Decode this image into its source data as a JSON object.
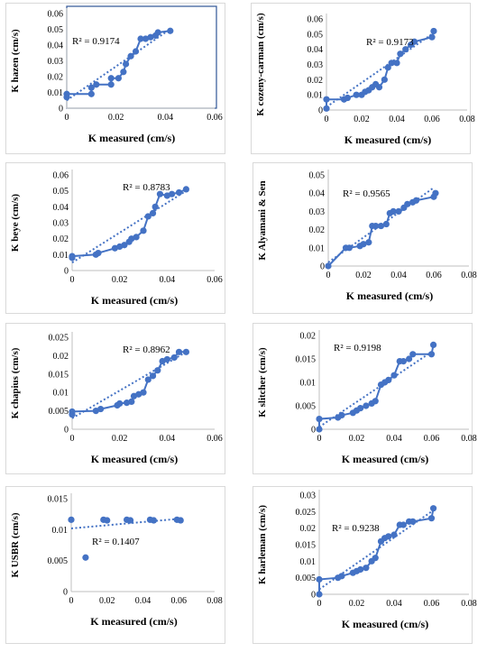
{
  "chart_data": [
    {
      "type": "scatter",
      "ylabel": "K hazen (cm/s)",
      "xlabel": "K measured (cm/s)",
      "annotation": "R² = 0.9174",
      "xlim": [
        0,
        0.06
      ],
      "xticks": [
        0,
        0.02,
        0.04,
        0.06
      ],
      "xtick_labels": [
        "0",
        "0.02",
        "0.04",
        "0.06"
      ],
      "ylim": [
        0,
        0.06
      ],
      "yticks": [
        0,
        0.01,
        0.02,
        0.03,
        0.04,
        0.05,
        0.06
      ],
      "ytick_labels": [
        "0",
        "0.01",
        "0.02",
        "0.03",
        "0.04",
        "0.05",
        "0.06"
      ],
      "grid": false,
      "points": [
        [
          0,
          0.007
        ],
        [
          0,
          0.009
        ],
        [
          0.01,
          0.009
        ],
        [
          0.01,
          0.013
        ],
        [
          0.012,
          0.015
        ],
        [
          0.018,
          0.015
        ],
        [
          0.018,
          0.019
        ],
        [
          0.021,
          0.019
        ],
        [
          0.023,
          0.023
        ],
        [
          0.024,
          0.028
        ],
        [
          0.026,
          0.033
        ],
        [
          0.028,
          0.036
        ],
        [
          0.03,
          0.044
        ],
        [
          0.032,
          0.044
        ],
        [
          0.034,
          0.045
        ],
        [
          0.036,
          0.046
        ],
        [
          0.037,
          0.048
        ],
        [
          0.042,
          0.049
        ]
      ],
      "trendline": [
        [
          0,
          0.005
        ],
        [
          0.04,
          0.048
        ]
      ]
    },
    {
      "type": "scatter",
      "ylabel": "K cozeny-carman (cm/s)",
      "xlabel": "K measured (cm/s)",
      "annotation": "R² = 0.9173",
      "xlim": [
        0,
        0.08
      ],
      "xticks": [
        0,
        0.02,
        0.04,
        0.06,
        0.08
      ],
      "xtick_labels": [
        "0",
        "0.02",
        "0.04",
        "0.06",
        "0.08"
      ],
      "ylim": [
        0,
        0.06
      ],
      "yticks": [
        0,
        0.01,
        0.02,
        0.03,
        0.04,
        0.05,
        0.06
      ],
      "ytick_labels": [
        "0",
        "0.01",
        "0.02",
        "0.03",
        "0.04",
        "0.05",
        "0.06"
      ],
      "grid": false,
      "points": [
        [
          0,
          0.001
        ],
        [
          0,
          0.007
        ],
        [
          0.01,
          0.007
        ],
        [
          0.012,
          0.008
        ],
        [
          0.017,
          0.01
        ],
        [
          0.02,
          0.01
        ],
        [
          0.022,
          0.012
        ],
        [
          0.024,
          0.013
        ],
        [
          0.026,
          0.015
        ],
        [
          0.028,
          0.017
        ],
        [
          0.03,
          0.015
        ],
        [
          0.033,
          0.02
        ],
        [
          0.035,
          0.028
        ],
        [
          0.037,
          0.031
        ],
        [
          0.04,
          0.031
        ],
        [
          0.042,
          0.037
        ],
        [
          0.045,
          0.04
        ],
        [
          0.048,
          0.043
        ],
        [
          0.05,
          0.045
        ],
        [
          0.06,
          0.048
        ],
        [
          0.061,
          0.052
        ]
      ],
      "trendline": [
        [
          0,
          0.002
        ],
        [
          0.06,
          0.05
        ]
      ]
    },
    {
      "type": "scatter",
      "ylabel": "K beye (cm/s)",
      "xlabel": "K measured (cm/s)",
      "annotation": "R² = 0.8783",
      "xlim": [
        0,
        0.06
      ],
      "xticks": [
        0,
        0.02,
        0.04,
        0.06
      ],
      "xtick_labels": [
        "0",
        "0.02",
        "0.04",
        "0.06"
      ],
      "ylim": [
        0,
        0.06
      ],
      "yticks": [
        0,
        0.01,
        0.02,
        0.03,
        0.04,
        0.05,
        0.06
      ],
      "ytick_labels": [
        "0",
        "0.01",
        "0.02",
        "0.03",
        "0.04",
        "0.05",
        "0.06"
      ],
      "grid": false,
      "points": [
        [
          0,
          0.008
        ],
        [
          0,
          0.009
        ],
        [
          0.01,
          0.01
        ],
        [
          0.011,
          0.011
        ],
        [
          0.018,
          0.014
        ],
        [
          0.02,
          0.015
        ],
        [
          0.022,
          0.016
        ],
        [
          0.024,
          0.018
        ],
        [
          0.025,
          0.02
        ],
        [
          0.027,
          0.021
        ],
        [
          0.03,
          0.025
        ],
        [
          0.032,
          0.034
        ],
        [
          0.034,
          0.036
        ],
        [
          0.035,
          0.04
        ],
        [
          0.037,
          0.048
        ],
        [
          0.04,
          0.047
        ],
        [
          0.042,
          0.048
        ],
        [
          0.045,
          0.049
        ],
        [
          0.048,
          0.051
        ]
      ],
      "trendline": [
        [
          0,
          0.005
        ],
        [
          0.048,
          0.05
        ]
      ]
    },
    {
      "type": "scatter",
      "ylabel": "K Alyamani & Sen",
      "xlabel": "K measured (cm/s)",
      "annotation": "R² = 0.9565",
      "xlim": [
        0,
        0.08
      ],
      "xticks": [
        0,
        0.02,
        0.04,
        0.06,
        0.08
      ],
      "xtick_labels": [
        "0",
        "0.02",
        "0.04",
        "0.06",
        "0.08"
      ],
      "ylim": [
        0,
        0.05
      ],
      "yticks": [
        0,
        0.01,
        0.02,
        0.03,
        0.04,
        0.05
      ],
      "ytick_labels": [
        "0",
        "0.01",
        "0.02",
        "0.03",
        "0.04",
        "0.05"
      ],
      "grid": false,
      "points": [
        [
          0,
          0
        ],
        [
          0.01,
          0.01
        ],
        [
          0.012,
          0.01
        ],
        [
          0.018,
          0.011
        ],
        [
          0.02,
          0.012
        ],
        [
          0.023,
          0.013
        ],
        [
          0.025,
          0.022
        ],
        [
          0.027,
          0.022
        ],
        [
          0.03,
          0.022
        ],
        [
          0.033,
          0.023
        ],
        [
          0.035,
          0.029
        ],
        [
          0.037,
          0.03
        ],
        [
          0.04,
          0.03
        ],
        [
          0.043,
          0.032
        ],
        [
          0.045,
          0.034
        ],
        [
          0.048,
          0.035
        ],
        [
          0.05,
          0.036
        ],
        [
          0.06,
          0.038
        ],
        [
          0.061,
          0.04
        ]
      ],
      "trendline": [
        [
          0,
          0.002
        ],
        [
          0.06,
          0.043
        ]
      ]
    },
    {
      "type": "scatter",
      "ylabel": "K chapius (cm/s)",
      "xlabel": "K measured (cm/s)",
      "annotation": "R² = 0.8962",
      "xlim": [
        0,
        0.06
      ],
      "xticks": [
        0,
        0.02,
        0.04,
        0.06
      ],
      "xtick_labels": [
        "0",
        "0.02",
        "0.04",
        "0.06"
      ],
      "ylim": [
        0,
        0.025
      ],
      "yticks": [
        0,
        0.005,
        0.01,
        0.015,
        0.02,
        0.025
      ],
      "ytick_labels": [
        "0",
        "0.005",
        "0.01",
        "0.015",
        "0.02",
        "0.025"
      ],
      "grid": false,
      "points": [
        [
          0,
          0.004
        ],
        [
          0,
          0.0048
        ],
        [
          0.01,
          0.005
        ],
        [
          0.012,
          0.0055
        ],
        [
          0.019,
          0.0065
        ],
        [
          0.02,
          0.007
        ],
        [
          0.023,
          0.0072
        ],
        [
          0.025,
          0.0075
        ],
        [
          0.026,
          0.009
        ],
        [
          0.028,
          0.0095
        ],
        [
          0.03,
          0.01
        ],
        [
          0.032,
          0.0135
        ],
        [
          0.034,
          0.0145
        ],
        [
          0.036,
          0.016
        ],
        [
          0.038,
          0.0185
        ],
        [
          0.04,
          0.019
        ],
        [
          0.043,
          0.0195
        ],
        [
          0.045,
          0.021
        ],
        [
          0.048,
          0.021
        ]
      ],
      "trendline": [
        [
          0,
          0.003
        ],
        [
          0.048,
          0.021
        ]
      ]
    },
    {
      "type": "scatter",
      "ylabel": "K slitcher (cm/s)",
      "xlabel": "K measured (cm/s)",
      "annotation": "R² = 0.9198",
      "xlim": [
        0,
        0.08
      ],
      "xticks": [
        0,
        0.02,
        0.04,
        0.06,
        0.08
      ],
      "xtick_labels": [
        "0",
        "0.02",
        "0.04",
        "0.06",
        "0.08"
      ],
      "ylim": [
        0,
        0.02
      ],
      "yticks": [
        0,
        0.005,
        0.01,
        0.015,
        0.02
      ],
      "ytick_labels": [
        "0",
        "0.005",
        "0.01",
        "0.015",
        "0.02"
      ],
      "grid": false,
      "points": [
        [
          0,
          0
        ],
        [
          0,
          0.0022
        ],
        [
          0.01,
          0.0025
        ],
        [
          0.012,
          0.003
        ],
        [
          0.018,
          0.0035
        ],
        [
          0.02,
          0.004
        ],
        [
          0.022,
          0.0045
        ],
        [
          0.025,
          0.005
        ],
        [
          0.028,
          0.0055
        ],
        [
          0.03,
          0.006
        ],
        [
          0.033,
          0.0095
        ],
        [
          0.035,
          0.01
        ],
        [
          0.037,
          0.0105
        ],
        [
          0.04,
          0.0115
        ],
        [
          0.043,
          0.0145
        ],
        [
          0.045,
          0.0145
        ],
        [
          0.048,
          0.015
        ],
        [
          0.05,
          0.016
        ],
        [
          0.06,
          0.016
        ],
        [
          0.061,
          0.018
        ]
      ],
      "trendline": [
        [
          0,
          0.0005
        ],
        [
          0.06,
          0.0165
        ]
      ]
    },
    {
      "type": "scatter",
      "ylabel": "K USBR (cm/s)",
      "xlabel": "K measured (cm/s)",
      "annotation": "R² = 0.1407",
      "xlim": [
        0,
        0.08
      ],
      "xticks": [
        0,
        0.02,
        0.04,
        0.06,
        0.08
      ],
      "xtick_labels": [
        "0",
        "0.02",
        "0.04",
        "0.06",
        "0.08"
      ],
      "ylim": [
        0,
        0.015
      ],
      "yticks": [
        0,
        0.005,
        0.01,
        0.015
      ],
      "ytick_labels": [
        "0",
        "0.005",
        "0.01",
        "0.015"
      ],
      "grid": false,
      "points": [
        [
          0,
          0.0116
        ],
        [
          0.008,
          0.0055
        ],
        [
          0.018,
          0.0116
        ],
        [
          0.02,
          0.0115
        ],
        [
          0.031,
          0.0116
        ],
        [
          0.033,
          0.0115
        ],
        [
          0.044,
          0.0116
        ],
        [
          0.046,
          0.0115
        ],
        [
          0.059,
          0.0116
        ],
        [
          0.061,
          0.0115
        ]
      ],
      "trendline": [
        [
          0,
          0.0102
        ],
        [
          0.062,
          0.0118
        ]
      ]
    },
    {
      "type": "scatter",
      "ylabel": "K harleman (cm/s)",
      "xlabel": "K measured (cm/s)",
      "annotation": "R² = 0.9238",
      "xlim": [
        0,
        0.08
      ],
      "xticks": [
        0,
        0.02,
        0.04,
        0.06,
        0.08
      ],
      "xtick_labels": [
        "0",
        "0.02",
        "0.04",
        "0.06",
        "0.08"
      ],
      "ylim": [
        0,
        0.03
      ],
      "yticks": [
        0,
        0.005,
        0.01,
        0.015,
        0.02,
        0.025,
        0.03
      ],
      "ytick_labels": [
        "0",
        "0.005",
        "0.01",
        "0.015",
        "0.02",
        "0.025",
        "0.03"
      ],
      "grid": false,
      "points": [
        [
          0,
          0
        ],
        [
          0,
          0.0045
        ],
        [
          0.01,
          0.005
        ],
        [
          0.012,
          0.0055
        ],
        [
          0.018,
          0.0065
        ],
        [
          0.02,
          0.007
        ],
        [
          0.022,
          0.0075
        ],
        [
          0.025,
          0.008
        ],
        [
          0.028,
          0.01
        ],
        [
          0.03,
          0.011
        ],
        [
          0.033,
          0.016
        ],
        [
          0.035,
          0.017
        ],
        [
          0.037,
          0.0175
        ],
        [
          0.04,
          0.018
        ],
        [
          0.043,
          0.021
        ],
        [
          0.045,
          0.021
        ],
        [
          0.048,
          0.022
        ],
        [
          0.05,
          0.022
        ],
        [
          0.06,
          0.023
        ],
        [
          0.061,
          0.026
        ]
      ],
      "trendline": [
        [
          0,
          0.0015
        ],
        [
          0.06,
          0.025
        ]
      ]
    }
  ]
}
